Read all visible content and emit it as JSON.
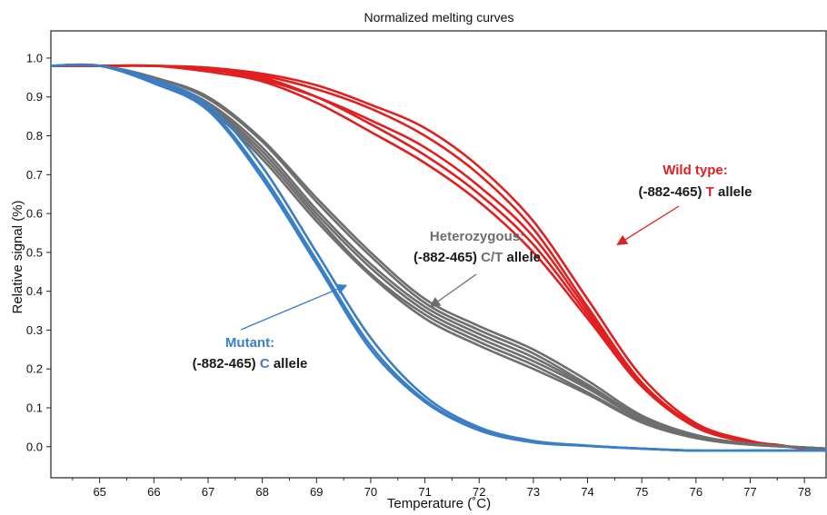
{
  "chart_data": {
    "type": "line",
    "title": "Normalized melting curves",
    "xlabel": "Temperature (˚C)",
    "ylabel": "Relative signal (%)",
    "xlim": [
      64.1,
      78.4
    ],
    "ylim": [
      -0.08,
      1.07
    ],
    "x_ticks": [
      65,
      66,
      67,
      68,
      69,
      70,
      71,
      72,
      73,
      74,
      75,
      76,
      77,
      78
    ],
    "y_ticks": [
      0.0,
      0.1,
      0.2,
      0.3,
      0.4,
      0.5,
      0.6,
      0.7,
      0.8,
      0.9,
      1.0
    ],
    "grid": false,
    "series": [
      {
        "group": "wild-type",
        "color": "#e02020",
        "curves": [
          {
            "x": [
              64.1,
              65,
              66,
              67,
              68,
              69,
              70,
              71,
              72,
              73,
              74,
              75,
              76,
              77,
              77.5,
              78,
              78.4
            ],
            "y": [
              0.98,
              0.98,
              0.98,
              0.975,
              0.96,
              0.93,
              0.88,
              0.82,
              0.72,
              0.58,
              0.38,
              0.18,
              0.06,
              0.015,
              0.005,
              -0.005,
              -0.01
            ]
          },
          {
            "x": [
              64.1,
              65,
              66,
              67,
              68,
              69,
              70,
              71,
              72,
              73,
              74,
              75,
              76,
              77,
              77.5,
              78,
              78.4
            ],
            "y": [
              0.98,
              0.98,
              0.98,
              0.975,
              0.955,
              0.92,
              0.87,
              0.8,
              0.7,
              0.56,
              0.36,
              0.165,
              0.055,
              0.012,
              0.004,
              -0.005,
              -0.01
            ]
          },
          {
            "x": [
              64.1,
              65,
              66,
              67,
              68,
              69,
              70,
              71,
              72,
              73,
              74,
              75,
              76,
              77,
              77.5,
              78,
              78.4
            ],
            "y": [
              0.98,
              0.98,
              0.98,
              0.97,
              0.95,
              0.9,
              0.83,
              0.75,
              0.65,
              0.52,
              0.34,
              0.16,
              0.055,
              0.012,
              0.004,
              -0.005,
              -0.01
            ]
          },
          {
            "x": [
              64.1,
              65,
              66,
              67,
              68,
              69,
              70,
              71,
              72,
              73,
              74,
              75,
              76,
              77,
              77.5,
              78,
              78.4
            ],
            "y": [
              0.98,
              0.98,
              0.98,
              0.965,
              0.94,
              0.885,
              0.81,
              0.73,
              0.63,
              0.5,
              0.33,
              0.155,
              0.05,
              0.01,
              0.003,
              -0.005,
              -0.01
            ]
          },
          {
            "x": [
              64.1,
              65,
              66,
              67,
              68,
              69,
              70,
              71,
              72,
              73,
              74,
              75,
              76,
              77,
              77.5,
              78,
              78.4
            ],
            "y": [
              0.98,
              0.98,
              0.98,
              0.972,
              0.945,
              0.9,
              0.84,
              0.77,
              0.67,
              0.54,
              0.35,
              0.16,
              0.05,
              0.011,
              0.003,
              -0.005,
              -0.01
            ]
          }
        ]
      },
      {
        "group": "heterozygous",
        "color": "#6e6e6e",
        "curves": [
          {
            "x": [
              64.1,
              65,
              66,
              67,
              68,
              69,
              70,
              71,
              72,
              73,
              74,
              75,
              76,
              77,
              78.4
            ],
            "y": [
              0.98,
              0.98,
              0.95,
              0.9,
              0.79,
              0.64,
              0.5,
              0.38,
              0.31,
              0.25,
              0.17,
              0.08,
              0.03,
              0.008,
              -0.005
            ]
          },
          {
            "x": [
              64.1,
              65,
              66,
              67,
              68,
              69,
              70,
              71,
              72,
              73,
              74,
              75,
              76,
              77,
              78.4
            ],
            "y": [
              0.98,
              0.98,
              0.95,
              0.895,
              0.785,
              0.63,
              0.49,
              0.37,
              0.3,
              0.24,
              0.16,
              0.075,
              0.028,
              0.007,
              -0.005
            ]
          },
          {
            "x": [
              64.1,
              65,
              66,
              67,
              68,
              69,
              70,
              71,
              72,
              73,
              74,
              75,
              76,
              77,
              78.4
            ],
            "y": [
              0.98,
              0.98,
              0.94,
              0.88,
              0.76,
              0.6,
              0.46,
              0.35,
              0.28,
              0.22,
              0.15,
              0.07,
              0.025,
              0.006,
              -0.005
            ]
          },
          {
            "x": [
              64.1,
              65,
              66,
              67,
              68,
              69,
              70,
              71,
              72,
              73,
              74,
              75,
              76,
              77,
              78.4
            ],
            "y": [
              0.98,
              0.98,
              0.94,
              0.875,
              0.75,
              0.59,
              0.445,
              0.34,
              0.27,
              0.21,
              0.14,
              0.065,
              0.023,
              0.006,
              -0.005
            ]
          },
          {
            "x": [
              64.1,
              65,
              66,
              67,
              68,
              69,
              70,
              71,
              72,
              73,
              74,
              75,
              76,
              77,
              78.4
            ],
            "y": [
              0.98,
              0.98,
              0.945,
              0.885,
              0.77,
              0.61,
              0.47,
              0.36,
              0.29,
              0.23,
              0.155,
              0.072,
              0.026,
              0.007,
              -0.005
            ]
          },
          {
            "x": [
              64.1,
              65,
              66,
              67,
              68,
              69,
              70,
              71,
              72,
              73,
              74,
              75,
              76,
              77,
              78.4
            ],
            "y": [
              0.98,
              0.98,
              0.94,
              0.87,
              0.74,
              0.58,
              0.44,
              0.33,
              0.26,
              0.2,
              0.135,
              0.062,
              0.022,
              0.005,
              -0.005
            ]
          }
        ]
      },
      {
        "group": "mutant",
        "color": "#3a7ec6",
        "curves": [
          {
            "x": [
              64.1,
              65,
              66,
              67,
              68,
              69,
              70,
              71,
              72,
              73,
              74,
              75,
              76,
              77,
              78.4
            ],
            "y": [
              0.98,
              0.98,
              0.945,
              0.88,
              0.72,
              0.5,
              0.28,
              0.13,
              0.05,
              0.015,
              0.003,
              -0.005,
              -0.01,
              -0.01,
              -0.01
            ]
          },
          {
            "x": [
              64.1,
              65,
              66,
              67,
              68,
              69,
              70,
              71,
              72,
              73,
              74,
              75,
              76,
              77,
              78.4
            ],
            "y": [
              0.98,
              0.98,
              0.94,
              0.87,
              0.7,
              0.48,
              0.26,
              0.12,
              0.045,
              0.012,
              0.002,
              -0.005,
              -0.01,
              -0.01,
              -0.01
            ]
          },
          {
            "x": [
              64.1,
              65,
              66,
              67,
              68,
              69,
              70,
              71,
              72,
              73,
              74,
              75,
              76,
              77,
              78.4
            ],
            "y": [
              0.98,
              0.98,
              0.935,
              0.865,
              0.69,
              0.47,
              0.25,
              0.115,
              0.042,
              0.011,
              0.002,
              -0.005,
              -0.01,
              -0.01,
              -0.01
            ]
          }
        ]
      }
    ],
    "annotations": [
      {
        "id": "wild-type",
        "title": "Wild type:",
        "code": "(-882-465)",
        "allele_letter": "T",
        "allele_word": "allele",
        "color": "#e02020",
        "arrow_to": [
          74.55,
          0.52
        ]
      },
      {
        "id": "heterozygous",
        "title": "Heterozygous:",
        "code": "(-882-465)",
        "allele_letter": "C/T",
        "allele_word": "allele",
        "color": "#6e6e6e",
        "arrow_to": [
          71.1,
          0.36
        ]
      },
      {
        "id": "mutant",
        "title": "Mutant:",
        "code": "(-882-465)",
        "allele_letter": "C",
        "allele_word": "allele",
        "color": "#3a7ec6",
        "arrow_to": [
          69.55,
          0.415
        ]
      }
    ]
  }
}
